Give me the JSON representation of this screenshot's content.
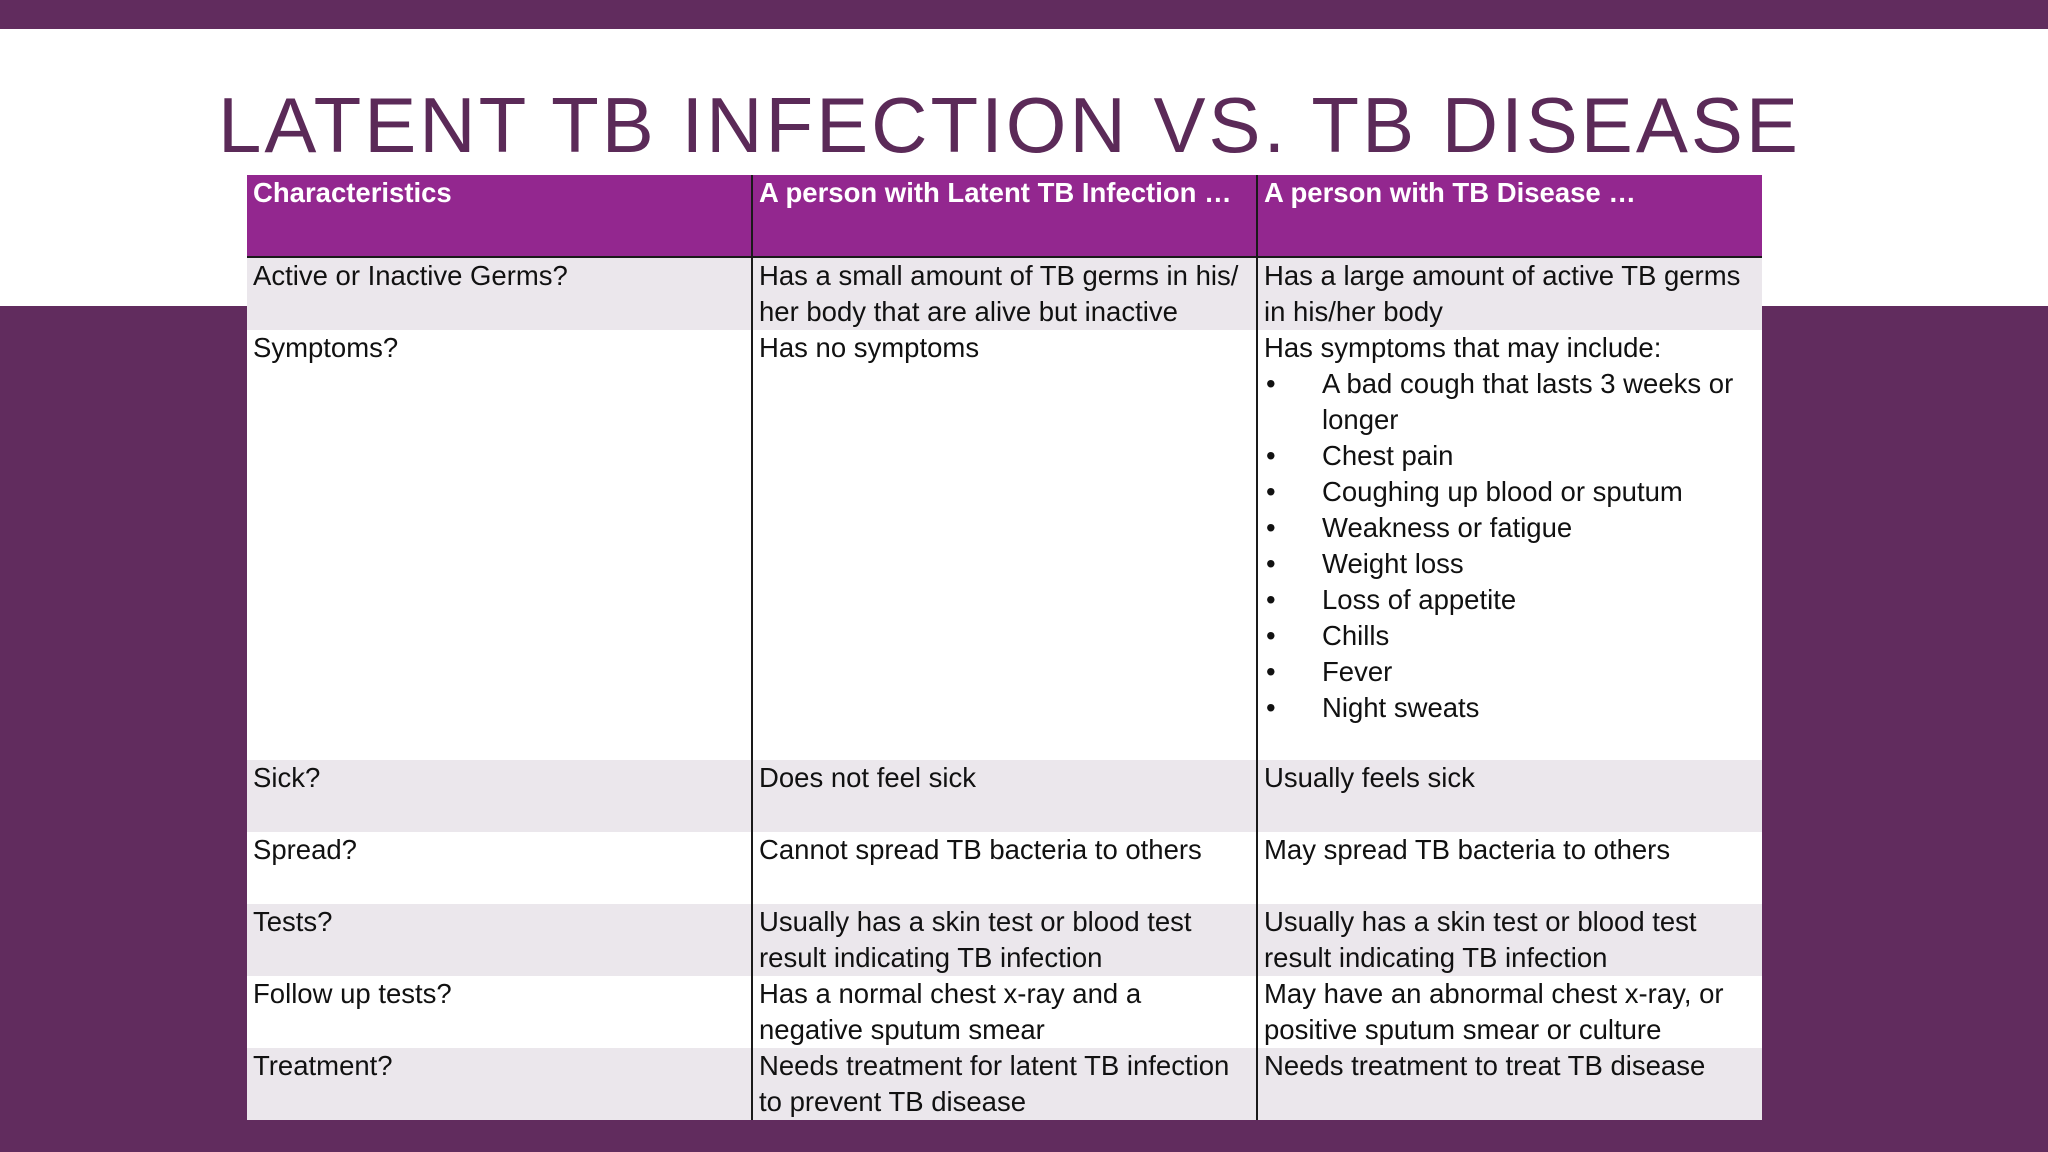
{
  "slide": {
    "title": "LATENT TB INFECTION VS. TB DISEASE",
    "colors": {
      "background": "#612c5e",
      "title": "#5b2a58",
      "header": "#93278f",
      "shaded_row": "#ebe7ec"
    }
  },
  "table": {
    "headers": [
      "Characteristics",
      "A person with Latent TB Infection …",
      "A person with TB Disease …"
    ],
    "rows": [
      {
        "characteristic": "Active or Inactive Germs?",
        "latent": "Has a small amount of TB germs in his/ her body that are alive but inactive",
        "disease": "Has a large amount of active TB germs in his/her body"
      },
      {
        "characteristic": "Symptoms?",
        "latent": "Has no symptoms",
        "disease_intro": "Has symptoms that may include:",
        "bullet_icon": "•",
        "disease_list": [
          "A bad cough that lasts 3 weeks or longer",
          "Chest pain",
          "Coughing up blood or sputum",
          "Weakness or fatigue",
          "Weight loss",
          "Loss of appetite",
          "Chills",
          "Fever",
          "Night sweats"
        ]
      },
      {
        "characteristic": "Sick?",
        "latent": "Does not feel sick",
        "disease": "Usually feels sick"
      },
      {
        "characteristic": "Spread?",
        "latent": "Cannot spread TB bacteria to others",
        "disease": "May spread TB bacteria to others"
      },
      {
        "characteristic": "Tests?",
        "latent": "Usually has a skin test or blood test result indicating TB infection",
        "disease": "Usually has a skin test or blood test result indicating TB infection"
      },
      {
        "characteristic": "Follow up tests?",
        "latent": "Has a normal chest x-ray and a negative sputum smear",
        "disease": "May have an abnormal chest x-ray, or positive sputum smear or culture"
      },
      {
        "characteristic": "Treatment?",
        "latent": "Needs treatment for latent TB infection to prevent TB disease",
        "disease": "Needs treatment to treat TB disease"
      }
    ]
  }
}
